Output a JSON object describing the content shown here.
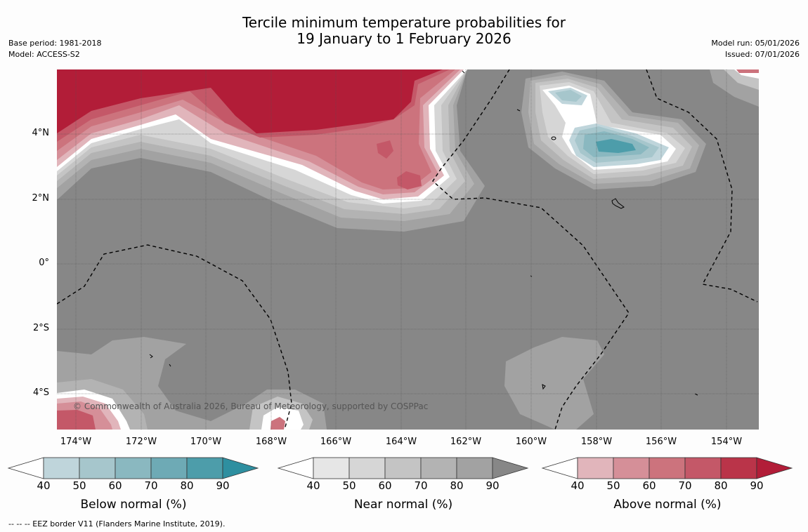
{
  "title": {
    "line1": "Tercile minimum temperature probabilities for",
    "line2": "19 January to 1 February 2026"
  },
  "meta": {
    "base_period": "Base period: 1981-2018",
    "model": "Model: ACCESS-S2",
    "model_run": "Model run: 05/01/2026",
    "issued": "Issued: 07/01/2026"
  },
  "map": {
    "lat_labels": [
      "4°N",
      "2°N",
      "0°",
      "2°S",
      "4°S"
    ],
    "lon_labels": [
      "174°W",
      "172°W",
      "170°W",
      "168°W",
      "166°W",
      "164°W",
      "162°W",
      "160°W",
      "158°W",
      "156°W",
      "154°W"
    ],
    "copyright": "© Commonwealth of Australia 2026, Bureau of Meteorology, supported by COSPPac"
  },
  "colorbars": [
    {
      "title": "Below normal (%)",
      "ticks": [
        "40",
        "50",
        "60",
        "70",
        "80",
        "90"
      ],
      "colors": [
        "#ffffff",
        "#bfd5db",
        "#a6c6cc",
        "#8ab8c0",
        "#6eaab5",
        "#4d9daa",
        "#2e8fa0"
      ]
    },
    {
      "title": "Near normal (%)",
      "ticks": [
        "40",
        "50",
        "60",
        "70",
        "80",
        "90"
      ],
      "colors": [
        "#ffffff",
        "#e6e6e6",
        "#d6d6d6",
        "#c4c4c4",
        "#b3b3b3",
        "#a2a2a2",
        "#878787"
      ]
    },
    {
      "title": "Above normal (%)",
      "ticks": [
        "40",
        "50",
        "60",
        "70",
        "80",
        "90"
      ],
      "colors": [
        "#ffffff",
        "#e1b5bb",
        "#d58f98",
        "#cc737d",
        "#c45868",
        "#ba3449",
        "#b21d38"
      ]
    }
  ],
  "footnote": "--  --  -- EEZ border V11 (Flanders Marine Institute, 2019)."
}
